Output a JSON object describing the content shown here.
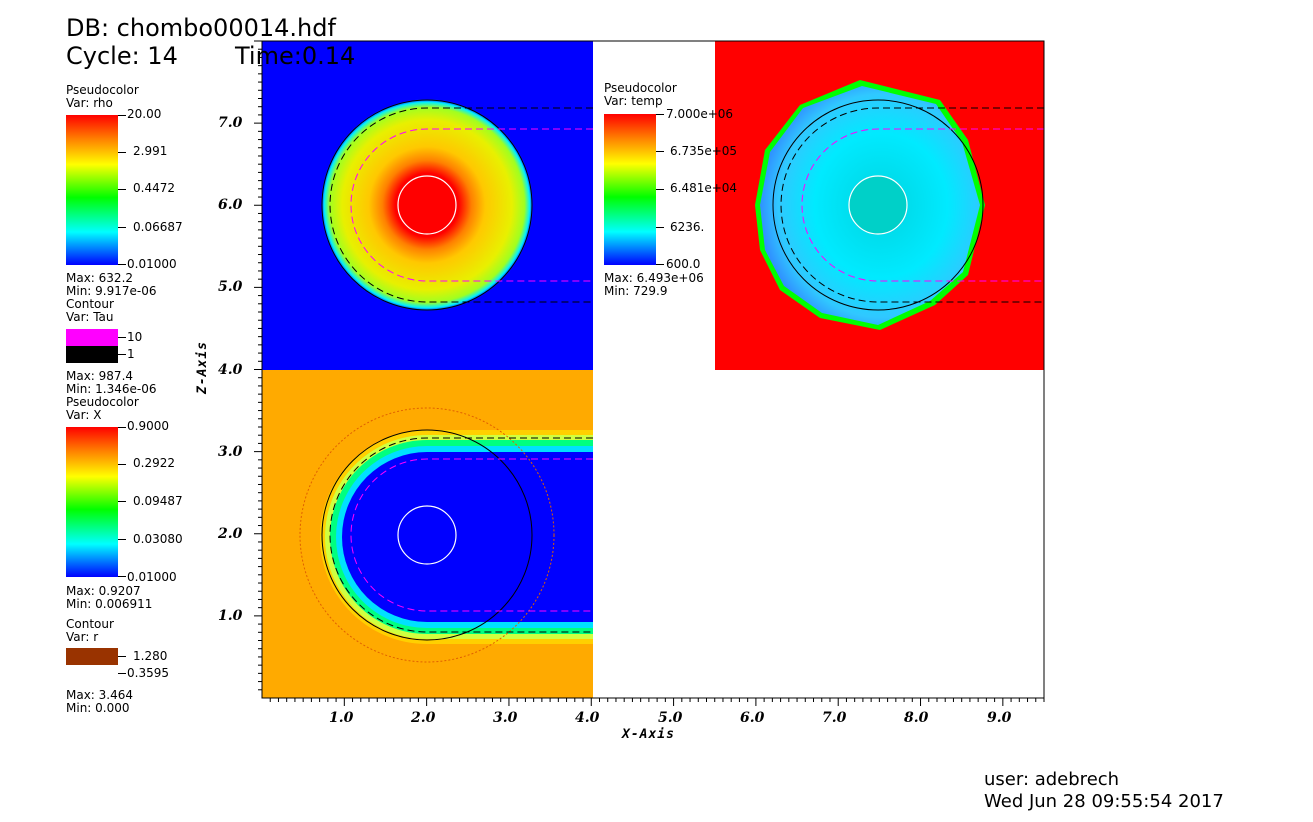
{
  "header": {
    "db": "DB: chombo00014.hdf",
    "cycle": "Cycle: 14",
    "time": "Time:0.14"
  },
  "legends": {
    "rho": {
      "plot_type": "Pseudocolor",
      "var": "Var: rho",
      "ticks": [
        "20.00",
        "2.991",
        "0.4472",
        "0.06687",
        "0.01000"
      ],
      "max": "Max: 632.2",
      "min": "Min: 9.917e-06"
    },
    "tau": {
      "plot_type": "Contour",
      "var": "Var: Tau",
      "levels": [
        {
          "label": "10",
          "color": "#ff00ff"
        },
        {
          "label": "1",
          "color": "#000000"
        }
      ],
      "max": "Max: 987.4",
      "min": "Min: 1.346e-06"
    },
    "x": {
      "plot_type": "Pseudocolor",
      "var": "Var: X",
      "ticks": [
        "0.9000",
        "0.2922",
        "0.09487",
        "0.03080",
        "0.01000"
      ],
      "max": "Max: 0.9207",
      "min": "Min: 0.006911"
    },
    "r": {
      "plot_type": "Contour",
      "var": "Var: r",
      "levels": [
        {
          "label": "1.280",
          "color": "#993300"
        },
        {
          "label": "0.3595",
          "color": "#000000"
        }
      ],
      "max": "Max: 3.464",
      "min": "Min: 0.000"
    },
    "temp": {
      "plot_type": "Pseudocolor",
      "var": "Var: temp",
      "ticks": [
        "7.000e+06",
        "6.735e+05",
        "6.481e+04",
        "6236.",
        "600.0"
      ],
      "max": "Max: 6.493e+06",
      "min": "Min: 729.9"
    }
  },
  "axes": {
    "x_title": "X-Axis",
    "z_title": "Z-Axis",
    "x_ticks": [
      "1.0",
      "2.0",
      "3.0",
      "4.0",
      "5.0",
      "6.0",
      "7.0",
      "8.0",
      "9.0"
    ],
    "z_ticks": [
      "1.0",
      "2.0",
      "3.0",
      "4.0",
      "5.0",
      "6.0",
      "7.0"
    ],
    "x_range": [
      0,
      9.5
    ],
    "z_range": [
      0,
      8
    ]
  },
  "footer": {
    "user": "user: adebrech",
    "date": "Wed Jun 28 09:55:54 2017"
  },
  "colors": {
    "red_panel": "#ff0000",
    "blue_panel": "#0000ff",
    "orange_panel": "#ffaa00",
    "contour_magenta": "#ff00ff",
    "contour_black": "#000000",
    "contour_r": "#993300"
  }
}
